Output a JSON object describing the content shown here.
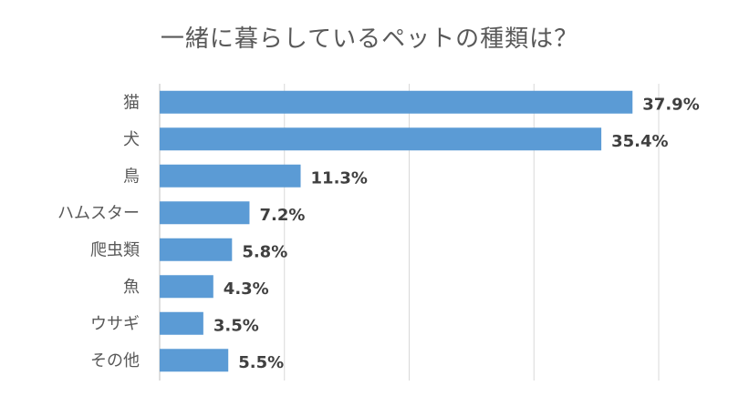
{
  "chart_data": {
    "type": "bar",
    "orientation": "horizontal",
    "title": "一緒に暮らしているペットの種類は？",
    "categories": [
      "猫",
      "犬",
      "鳥",
      "ハムスター",
      "爬虫類",
      "魚",
      "ウサギ",
      "その他"
    ],
    "values": [
      37.9,
      35.4,
      11.3,
      7.2,
      5.8,
      4.3,
      3.5,
      5.5
    ],
    "value_labels": [
      "37.9%",
      "35.4%",
      "11.3%",
      "7.2%",
      "5.8%",
      "4.3%",
      "3.5%",
      "5.5%"
    ],
    "xlabel": "",
    "ylabel": "",
    "xlim": [
      0,
      40
    ],
    "grid": true,
    "legend": "none",
    "bar_color": "#5b9bd5",
    "grid_color": "#d9d9d9"
  }
}
